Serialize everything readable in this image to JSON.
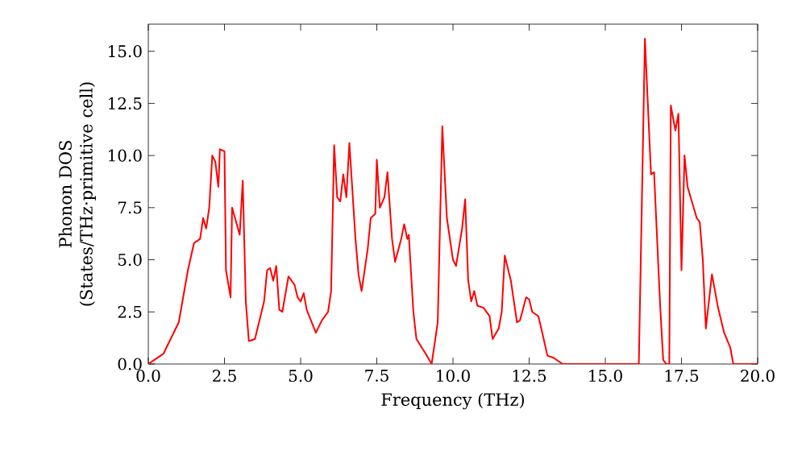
{
  "chart_data": {
    "type": "line",
    "xlabel": "Frequency (THz)",
    "ylabel": "Phonon DOS (States/THz·primitive cell)",
    "x": [
      0,
      0.5,
      1.0,
      1.3,
      1.5,
      1.7,
      1.8,
      1.9,
      2.0,
      2.1,
      2.2,
      2.3,
      2.35,
      2.5,
      2.55,
      2.7,
      2.75,
      3.0,
      3.1,
      3.2,
      3.3,
      3.5,
      3.8,
      3.9,
      4.0,
      4.1,
      4.2,
      4.3,
      4.4,
      4.6,
      4.8,
      4.9,
      5.0,
      5.1,
      5.2,
      5.5,
      5.7,
      5.9,
      6.0,
      6.1,
      6.2,
      6.3,
      6.4,
      6.5,
      6.6,
      6.8,
      6.9,
      7.0,
      7.2,
      7.3,
      7.45,
      7.5,
      7.6,
      7.75,
      7.85,
      8.0,
      8.1,
      8.3,
      8.4,
      8.5,
      8.55,
      8.7,
      8.8,
      9.1,
      9.3,
      9.5,
      9.65,
      9.8,
      10.0,
      10.1,
      10.3,
      10.4,
      10.5,
      10.6,
      10.7,
      10.8,
      11.0,
      11.2,
      11.3,
      11.5,
      11.6,
      11.7,
      11.9,
      12.1,
      12.2,
      12.4,
      12.5,
      12.6,
      12.8,
      12.9,
      13.1,
      13.3,
      13.6,
      16.0,
      16.1,
      16.3,
      16.5,
      16.6,
      16.8,
      16.9,
      17.0,
      17.1,
      17.15,
      17.3,
      17.4,
      17.5,
      17.6,
      17.7,
      17.9,
      18.0,
      18.1,
      18.2,
      18.3,
      18.5,
      18.7,
      18.9,
      19.1,
      19.2,
      20
    ],
    "series": [
      {
        "color": "#ff0000",
        "values": [
          0,
          0.5,
          2.0,
          4.5,
          5.8,
          6.0,
          7.0,
          6.5,
          7.5,
          10.0,
          9.7,
          8.5,
          10.3,
          10.2,
          4.5,
          3.2,
          7.5,
          6.2,
          8.8,
          3.0,
          1.1,
          1.2,
          3.0,
          4.5,
          4.6,
          4.0,
          4.7,
          2.6,
          2.5,
          4.2,
          3.8,
          3.2,
          3.0,
          3.4,
          2.6,
          1.5,
          2.1,
          2.5,
          3.5,
          10.5,
          8.0,
          7.8,
          9.1,
          8.0,
          10.6,
          6.0,
          4.3,
          3.5,
          5.5,
          7.0,
          7.2,
          9.8,
          7.5,
          8.0,
          9.2,
          6.0,
          4.9,
          6.0,
          6.7,
          6.0,
          6.2,
          2.5,
          1.2,
          0.5,
          0,
          2.0,
          11.4,
          7.0,
          5.0,
          4.7,
          6.5,
          7.9,
          4.0,
          3.0,
          3.5,
          2.8,
          2.7,
          2.3,
          1.2,
          1.7,
          2.5,
          5.2,
          4.0,
          2.0,
          2.1,
          3.2,
          3.1,
          2.5,
          2.3,
          1.7,
          0.4,
          0.3,
          0,
          0,
          0,
          15.6,
          9.1,
          9.2,
          2.8,
          0.2,
          0,
          0,
          12.4,
          11.2,
          12.0,
          4.5,
          10.0,
          8.5,
          7.5,
          7.0,
          6.8,
          5.0,
          1.7,
          4.3,
          2.7,
          1.5,
          0.8,
          0,
          0
        ]
      }
    ],
    "xlim": [
      0,
      20
    ],
    "ylim": [
      0,
      16.3
    ],
    "xticks": [
      {
        "value": 0,
        "label": "0.0"
      },
      {
        "value": 2.5,
        "label": "2.5"
      },
      {
        "value": 5,
        "label": "5.0"
      },
      {
        "value": 7.5,
        "label": "7.5"
      },
      {
        "value": 10,
        "label": "10.0"
      },
      {
        "value": 12.5,
        "label": "12.5"
      },
      {
        "value": 15,
        "label": "15.0"
      },
      {
        "value": 17.5,
        "label": "17.5"
      },
      {
        "value": 20,
        "label": "20.0"
      }
    ],
    "yticks": [
      {
        "value": 0,
        "label": "0.0"
      },
      {
        "value": 2.5,
        "label": "2.5"
      },
      {
        "value": 5,
        "label": "5.0"
      },
      {
        "value": 7.5,
        "label": "7.5"
      },
      {
        "value": 10,
        "label": "10.0"
      },
      {
        "value": 12.5,
        "label": "12.5"
      },
      {
        "value": 15,
        "label": "15.0"
      }
    ],
    "grid": false
  }
}
